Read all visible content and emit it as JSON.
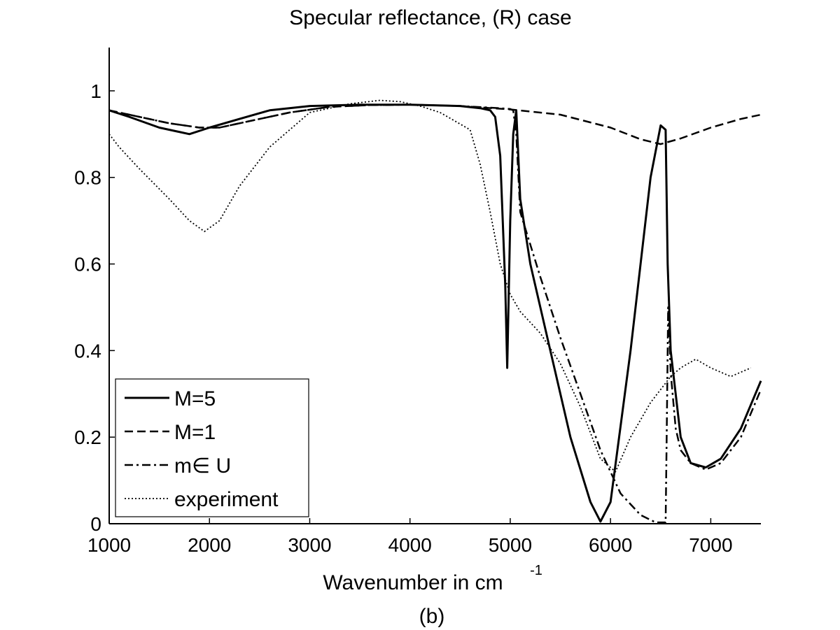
{
  "chart_data": {
    "type": "line",
    "title": "Specular reflectance, (R) case",
    "xlabel": "Wavenumber in cm",
    "xlabel_superscript": "-1",
    "caption": "(b)",
    "xlim": [
      1000,
      7500
    ],
    "ylim": [
      0,
      1.1
    ],
    "xticks": [
      1000,
      2000,
      3000,
      4000,
      5000,
      6000,
      7000
    ],
    "yticks": [
      0,
      0.2,
      0.4,
      0.6,
      0.8,
      1
    ],
    "ytick_labels": [
      "0",
      "0.2",
      "0.4",
      "0.6",
      "0.8",
      "1"
    ],
    "grid": false,
    "legend_position": "bottom-left",
    "series": [
      {
        "name": "M=5",
        "style": "solid",
        "x": [
          1000,
          1200,
          1500,
          1800,
          2000,
          2300,
          2600,
          3000,
          3500,
          4000,
          4500,
          4700,
          4800,
          4850,
          4900,
          4950,
          4970,
          5000,
          5030,
          5060,
          5100,
          5200,
          5400,
          5600,
          5800,
          5900,
          6000,
          6200,
          6400,
          6500,
          6550,
          6570,
          6600,
          6700,
          6800,
          6950,
          7100,
          7300,
          7500
        ],
        "y": [
          0.955,
          0.94,
          0.915,
          0.9,
          0.915,
          0.935,
          0.955,
          0.965,
          0.968,
          0.968,
          0.965,
          0.96,
          0.955,
          0.94,
          0.85,
          0.55,
          0.36,
          0.7,
          0.9,
          0.955,
          0.75,
          0.6,
          0.4,
          0.2,
          0.05,
          0.005,
          0.05,
          0.4,
          0.8,
          0.92,
          0.91,
          0.6,
          0.4,
          0.2,
          0.14,
          0.13,
          0.15,
          0.22,
          0.33
        ]
      },
      {
        "name": "M=1",
        "style": "dashed",
        "x": [
          1000,
          1300,
          1600,
          1900,
          2100,
          2400,
          2800,
          3200,
          3600,
          4000,
          4500,
          5000,
          5500,
          6000,
          6300,
          6500,
          6700,
          7000,
          7300,
          7500
        ],
        "y": [
          0.955,
          0.94,
          0.925,
          0.915,
          0.915,
          0.93,
          0.95,
          0.963,
          0.967,
          0.968,
          0.965,
          0.957,
          0.945,
          0.915,
          0.888,
          0.877,
          0.89,
          0.915,
          0.935,
          0.945
        ]
      },
      {
        "name": "m∈ U",
        "style": "dashdot",
        "x": [
          1000,
          1300,
          1600,
          1900,
          2100,
          2400,
          2800,
          3200,
          3600,
          4000,
          4500,
          4900,
          5000,
          5030,
          5060,
          5100,
          5300,
          5500,
          5700,
          5900,
          6100,
          6300,
          6450,
          6550,
          6560,
          6575,
          6600,
          6650,
          6700,
          6800,
          6950,
          7100,
          7300,
          7500
        ],
        "y": [
          0.955,
          0.94,
          0.925,
          0.915,
          0.915,
          0.93,
          0.95,
          0.963,
          0.967,
          0.968,
          0.965,
          0.96,
          0.958,
          0.955,
          0.9,
          0.72,
          0.57,
          0.43,
          0.3,
          0.17,
          0.07,
          0.02,
          0.003,
          0.003,
          0.2,
          0.5,
          0.35,
          0.22,
          0.17,
          0.14,
          0.125,
          0.14,
          0.2,
          0.31
        ]
      },
      {
        "name": "experiment",
        "style": "dotted",
        "x": [
          1000,
          1100,
          1300,
          1600,
          1800,
          1950,
          2100,
          2300,
          2600,
          3000,
          3400,
          3700,
          3900,
          4100,
          4300,
          4600,
          4700,
          4800,
          4900,
          5000,
          5100,
          5300,
          5500,
          5700,
          5900,
          6050,
          6200,
          6400,
          6600,
          6700,
          6850,
          7000,
          7200,
          7400
        ],
        "y": [
          0.9,
          0.87,
          0.82,
          0.75,
          0.7,
          0.675,
          0.7,
          0.78,
          0.87,
          0.95,
          0.97,
          0.978,
          0.975,
          0.965,
          0.95,
          0.91,
          0.83,
          0.72,
          0.6,
          0.53,
          0.49,
          0.44,
          0.37,
          0.27,
          0.15,
          0.12,
          0.2,
          0.28,
          0.34,
          0.36,
          0.38,
          0.36,
          0.34,
          0.36
        ]
      }
    ]
  }
}
